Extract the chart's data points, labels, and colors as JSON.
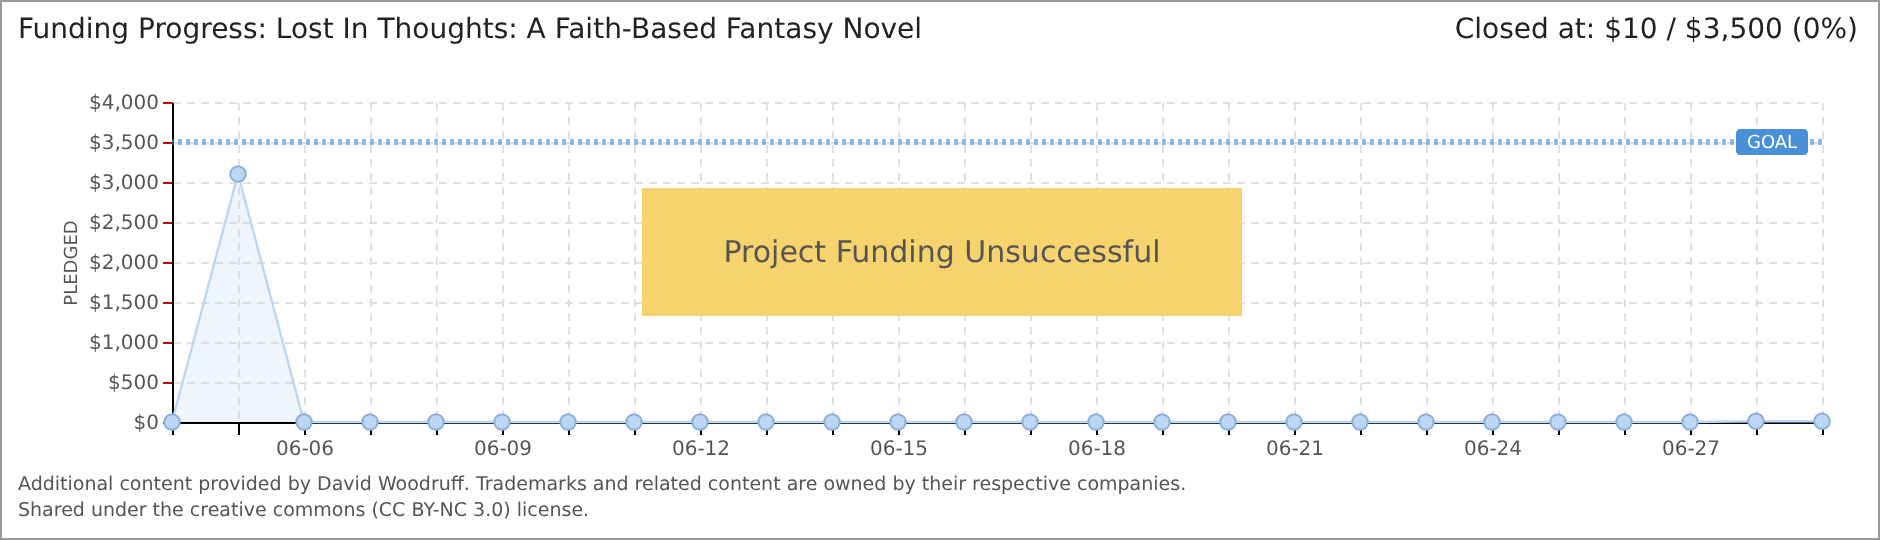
{
  "chart_data": {
    "type": "area",
    "title": "Funding Progress: Lost In Thoughts: A Faith-Based Fantasy Novel",
    "subtitle": "Closed at:  $10 /  $3,500 (0%)",
    "ylabel": "PLEDGED",
    "categories": [
      null,
      null,
      "06-06",
      null,
      null,
      "06-09",
      null,
      null,
      "06-12",
      null,
      null,
      "06-15",
      null,
      null,
      "06-18",
      null,
      null,
      "06-21",
      null,
      null,
      "06-24",
      null,
      null,
      "06-27",
      null,
      null
    ],
    "series": [
      {
        "color": "#bcd6f5",
        "values": [
          0,
          3100,
          0,
          0,
          0,
          0,
          0,
          0,
          0,
          0,
          0,
          0,
          0,
          0,
          0,
          0,
          0,
          0,
          0,
          0,
          0,
          0,
          0,
          0,
          10,
          10
        ]
      }
    ],
    "ylim": [
      0,
      4000
    ],
    "yticks": [
      {
        "value": 0,
        "label": "$0"
      },
      {
        "value": 500,
        "label": "$500"
      },
      {
        "value": 1000,
        "label": "$1,000"
      },
      {
        "value": 1500,
        "label": "$1,500"
      },
      {
        "value": 2000,
        "label": "$2,000"
      },
      {
        "value": 2500,
        "label": "$2,500"
      },
      {
        "value": 3000,
        "label": "$3,000"
      },
      {
        "value": 3500,
        "label": "$3,500"
      },
      {
        "value": 4000,
        "label": "$4,000"
      }
    ],
    "ref_lines": [
      {
        "axis": "y",
        "value": 3500,
        "label": "GOAL",
        "color": "#4a90d9",
        "line_style": "dotted"
      }
    ],
    "grid": true,
    "marker": "circle",
    "annotations": [
      "Project Funding Unsuccessful",
      "Additional content provided by David Woodruff. Trademarks and related content are owned by their respective companies.",
      "Shared under the creative commons (CC BY-NC 3.0) license."
    ]
  }
}
